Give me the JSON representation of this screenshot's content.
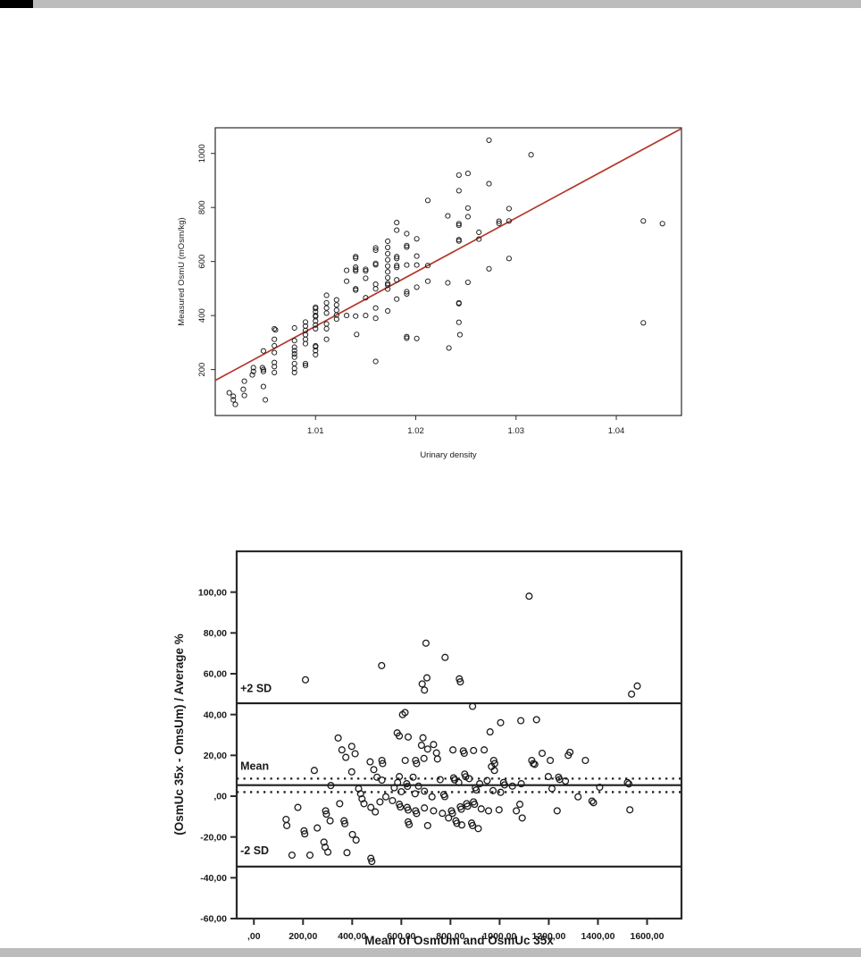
{
  "page": {
    "background_color": "#ffffff",
    "top_strip_color": "#bcbcbc",
    "bottom_strip_color": "#bcbcbc",
    "corner_bar_color": "#000000"
  },
  "chart_data": [
    {
      "type": "scatter",
      "name": "measured-osmolality-vs-urinary-density",
      "title": "",
      "xlabel": "Urinary density",
      "ylabel": "Measured OsmU (mOsm/kg)",
      "xlim": [
        1.0,
        1.0465
      ],
      "ylim": [
        30,
        1095
      ],
      "xticks": [
        1.01,
        1.02,
        1.03,
        1.04
      ],
      "xtick_labels": [
        "1.01",
        "1.02",
        "1.03",
        "1.04"
      ],
      "yticks": [
        200,
        400,
        600,
        800,
        1000
      ],
      "ytick_labels": [
        "200",
        "400",
        "600",
        "800",
        "1000"
      ],
      "grid": false,
      "marker": "open-circle",
      "marker_color": "#1b1b1b",
      "frame_color": "#2a2a2a",
      "regression_line": {
        "color": "#b5382b",
        "x": [
          1.0,
          1.0465
        ],
        "y": [
          160,
          1092
        ]
      },
      "points": [
        [
          1.0014,
          114
        ],
        [
          1.0018,
          101
        ],
        [
          1.0018,
          88
        ],
        [
          1.002,
          71
        ],
        [
          1.0028,
          127
        ],
        [
          1.0029,
          157
        ],
        [
          1.0029,
          104
        ],
        [
          1.0037,
          180
        ],
        [
          1.0038,
          207
        ],
        [
          1.0038,
          193
        ],
        [
          1.0047,
          207
        ],
        [
          1.0048,
          269
        ],
        [
          1.0048,
          200
        ],
        [
          1.0048,
          193
        ],
        [
          1.0048,
          137
        ],
        [
          1.005,
          88
        ],
        [
          1.0059,
          351
        ],
        [
          1.0059,
          312
        ],
        [
          1.0059,
          288
        ],
        [
          1.0059,
          263
        ],
        [
          1.0059,
          226
        ],
        [
          1.0059,
          211
        ],
        [
          1.0059,
          189
        ],
        [
          1.006,
          347
        ],
        [
          1.0079,
          354
        ],
        [
          1.0079,
          307
        ],
        [
          1.0079,
          283
        ],
        [
          1.0079,
          270
        ],
        [
          1.0079,
          258
        ],
        [
          1.0079,
          246
        ],
        [
          1.0079,
          222
        ],
        [
          1.0079,
          204
        ],
        [
          1.0079,
          189
        ],
        [
          1.009,
          376
        ],
        [
          1.009,
          361
        ],
        [
          1.009,
          345
        ],
        [
          1.009,
          329
        ],
        [
          1.009,
          312
        ],
        [
          1.009,
          296
        ],
        [
          1.009,
          222
        ],
        [
          1.009,
          215
        ],
        [
          1.01,
          431
        ],
        [
          1.01,
          426
        ],
        [
          1.01,
          414
        ],
        [
          1.01,
          400
        ],
        [
          1.01,
          396
        ],
        [
          1.01,
          380
        ],
        [
          1.01,
          365
        ],
        [
          1.01,
          351
        ],
        [
          1.01,
          288
        ],
        [
          1.01,
          284
        ],
        [
          1.01,
          270
        ],
        [
          1.01,
          255
        ],
        [
          1.0111,
          475
        ],
        [
          1.0111,
          447
        ],
        [
          1.0111,
          428
        ],
        [
          1.0111,
          409
        ],
        [
          1.0111,
          369
        ],
        [
          1.0111,
          351
        ],
        [
          1.0111,
          312
        ],
        [
          1.0121,
          458
        ],
        [
          1.0121,
          439
        ],
        [
          1.0121,
          420
        ],
        [
          1.0121,
          402
        ],
        [
          1.0121,
          387
        ],
        [
          1.0131,
          567
        ],
        [
          1.0131,
          527
        ],
        [
          1.0131,
          400
        ],
        [
          1.014,
          618
        ],
        [
          1.014,
          612
        ],
        [
          1.014,
          579
        ],
        [
          1.014,
          571
        ],
        [
          1.014,
          565
        ],
        [
          1.014,
          499
        ],
        [
          1.014,
          494
        ],
        [
          1.014,
          398
        ],
        [
          1.0141,
          330
        ],
        [
          1.015,
          571
        ],
        [
          1.015,
          565
        ],
        [
          1.015,
          538
        ],
        [
          1.015,
          466
        ],
        [
          1.015,
          400
        ],
        [
          1.016,
          650
        ],
        [
          1.016,
          642
        ],
        [
          1.016,
          593
        ],
        [
          1.016,
          588
        ],
        [
          1.016,
          516
        ],
        [
          1.016,
          499
        ],
        [
          1.016,
          428
        ],
        [
          1.016,
          390
        ],
        [
          1.016,
          230
        ],
        [
          1.0172,
          675
        ],
        [
          1.0172,
          652
        ],
        [
          1.0172,
          629
        ],
        [
          1.0172,
          606
        ],
        [
          1.0172,
          583
        ],
        [
          1.0172,
          562
        ],
        [
          1.0172,
          540
        ],
        [
          1.0172,
          519
        ],
        [
          1.0172,
          513
        ],
        [
          1.0172,
          498
        ],
        [
          1.0172,
          417
        ],
        [
          1.0181,
          744
        ],
        [
          1.0181,
          716
        ],
        [
          1.0181,
          618
        ],
        [
          1.0181,
          611
        ],
        [
          1.0181,
          585
        ],
        [
          1.0181,
          578
        ],
        [
          1.0181,
          532
        ],
        [
          1.0181,
          461
        ],
        [
          1.0191,
          703
        ],
        [
          1.0191,
          659
        ],
        [
          1.0191,
          653
        ],
        [
          1.0191,
          587
        ],
        [
          1.0191,
          488
        ],
        [
          1.0191,
          480
        ],
        [
          1.0191,
          322
        ],
        [
          1.0191,
          316
        ],
        [
          1.0201,
          684
        ],
        [
          1.0201,
          620
        ],
        [
          1.0201,
          587
        ],
        [
          1.0201,
          505
        ],
        [
          1.0201,
          315
        ],
        [
          1.0212,
          826
        ],
        [
          1.0212,
          585
        ],
        [
          1.0212,
          527
        ],
        [
          1.0232,
          769
        ],
        [
          1.0232,
          521
        ],
        [
          1.0233,
          280
        ],
        [
          1.0243,
          920
        ],
        [
          1.0243,
          862
        ],
        [
          1.0243,
          740
        ],
        [
          1.0243,
          734
        ],
        [
          1.0243,
          681
        ],
        [
          1.0243,
          676
        ],
        [
          1.0243,
          447
        ],
        [
          1.0243,
          444
        ],
        [
          1.0243,
          375
        ],
        [
          1.0244,
          329
        ],
        [
          1.0252,
          926
        ],
        [
          1.0252,
          798
        ],
        [
          1.0252,
          766
        ],
        [
          1.0252,
          523
        ],
        [
          1.0263,
          708
        ],
        [
          1.0263,
          683
        ],
        [
          1.0273,
          1049
        ],
        [
          1.0273,
          888
        ],
        [
          1.0273,
          573
        ],
        [
          1.0283,
          749
        ],
        [
          1.0283,
          741
        ],
        [
          1.0293,
          796
        ],
        [
          1.0293,
          750
        ],
        [
          1.0293,
          611
        ],
        [
          1.0315,
          995
        ],
        [
          1.0427,
          750
        ],
        [
          1.0427,
          373
        ],
        [
          1.0446,
          740
        ]
      ]
    },
    {
      "type": "scatter",
      "name": "bland-altman-osmolality",
      "title": "",
      "xlabel": "Mean of OsmUm and OsmUc 35x",
      "ylabel": "(OsmUc 35x - OmsUm) / Average %",
      "xlim": [
        -70,
        1740
      ],
      "ylim": [
        -60,
        120
      ],
      "xticks": [
        0,
        200,
        400,
        600,
        800,
        1000,
        1200,
        1400,
        1600
      ],
      "xtick_labels": [
        ",00",
        "200,00",
        "400,00",
        "600,00",
        "800,00",
        "1000,00",
        "1200,00",
        "1400,00",
        "1600,00"
      ],
      "yticks": [
        100,
        80,
        60,
        40,
        20,
        0,
        -20,
        -40,
        -60
      ],
      "ytick_labels": [
        "100,00",
        "80,00",
        "60,00",
        "40,00",
        "20,00",
        ",00",
        "-20,00",
        "-40,00",
        "-60,00"
      ],
      "grid": false,
      "marker": "open-circle",
      "marker_color": "#1b1b1b",
      "frame_color": "#2a2a2a",
      "reference_lines": [
        {
          "label": "+2 SD",
          "y": 45.5,
          "style": "solid"
        },
        {
          "label": "Mean",
          "y": 5.4,
          "style": "solid"
        },
        {
          "label": "",
          "y": 8.6,
          "style": "dotted"
        },
        {
          "label": "",
          "y": 2.0,
          "style": "dotted"
        },
        {
          "label": "-2 SD",
          "y": -34.5,
          "style": "solid"
        }
      ],
      "line_labels": [
        {
          "text": "+2 SD",
          "x": -55,
          "y": 51
        },
        {
          "text": "Mean",
          "x": -55,
          "y": 13
        },
        {
          "text": "-2 SD",
          "x": -55,
          "y": -28.5
        }
      ],
      "points": [
        [
          210,
          57
        ],
        [
          520,
          64
        ],
        [
          700,
          75
        ],
        [
          778,
          68
        ],
        [
          1120,
          98
        ],
        [
          1537,
          50
        ],
        [
          1560,
          54
        ],
        [
          685,
          55
        ],
        [
          694,
          52
        ],
        [
          704,
          58
        ],
        [
          836,
          57.5
        ],
        [
          840,
          56
        ],
        [
          890,
          44
        ],
        [
          615,
          41
        ],
        [
          605,
          40
        ],
        [
          628,
          29
        ],
        [
          592,
          29.5
        ],
        [
          343,
          28.5
        ],
        [
          961,
          31.5
        ],
        [
          1004,
          36
        ],
        [
          1086,
          37
        ],
        [
          1150,
          37.5
        ],
        [
          583,
          31
        ],
        [
          358,
          22.7
        ],
        [
          398,
          24.4
        ],
        [
          374,
          19
        ],
        [
          412,
          20.8
        ],
        [
          688,
          28.6
        ],
        [
          682,
          24.9
        ],
        [
          731,
          25.3
        ],
        [
          707,
          23.1
        ],
        [
          743,
          21.2
        ],
        [
          810,
          22.7
        ],
        [
          852,
          22.2
        ],
        [
          856,
          21
        ],
        [
          894,
          22.4
        ],
        [
          937,
          22.7
        ],
        [
          1173,
          21
        ],
        [
          1279,
          20
        ],
        [
          1286,
          21.5
        ],
        [
          246,
          12.6
        ],
        [
          398,
          11.9
        ],
        [
          473,
          16.8
        ],
        [
          488,
          13
        ],
        [
          521,
          17.5
        ],
        [
          524,
          16
        ],
        [
          616,
          17.5
        ],
        [
          658,
          17.5
        ],
        [
          662,
          16
        ],
        [
          692,
          18.5
        ],
        [
          747,
          18.2
        ],
        [
          976,
          17.5
        ],
        [
          980,
          16
        ],
        [
          967,
          14.5
        ],
        [
          979,
          12.6
        ],
        [
          1131,
          17.5
        ],
        [
          1143,
          15.6
        ],
        [
          1206,
          17.5
        ],
        [
          1137,
          16
        ],
        [
          1349,
          17.5
        ],
        [
          1240,
          9.3
        ],
        [
          1198,
          9.6
        ],
        [
          1244,
          8.2
        ],
        [
          1268,
          7.4
        ],
        [
          313,
          5.2
        ],
        [
          426,
          3.7
        ],
        [
          434,
          1.2
        ],
        [
          501,
          9.3
        ],
        [
          521,
          7.9
        ],
        [
          592,
          9.6
        ],
        [
          648,
          9.3
        ],
        [
          585,
          6.7
        ],
        [
          622,
          6.1
        ],
        [
          625,
          4.8
        ],
        [
          670,
          4.9
        ],
        [
          571,
          4.1
        ],
        [
          600,
          2.2
        ],
        [
          656,
          1.2
        ],
        [
          694,
          2.4
        ],
        [
          758,
          8.1
        ],
        [
          813,
          9
        ],
        [
          817,
          8
        ],
        [
          834,
          6.7
        ],
        [
          858,
          10.8
        ],
        [
          862,
          9.5
        ],
        [
          876,
          8.6
        ],
        [
          901,
          4.1
        ],
        [
          905,
          3
        ],
        [
          919,
          6.1
        ],
        [
          949,
          7.6
        ],
        [
          1016,
          6.7
        ],
        [
          1020,
          5.5
        ],
        [
          1052,
          4.9
        ],
        [
          1088,
          6.1
        ],
        [
          973,
          2.7
        ],
        [
          1004,
          1.9
        ],
        [
          773,
          0.8
        ],
        [
          777,
          -0.2
        ],
        [
          1213,
          3.7
        ],
        [
          1407,
          4.4
        ],
        [
          1520,
          6.7
        ],
        [
          1526,
          6
        ],
        [
          440,
          -1.3
        ],
        [
          448,
          -3.7
        ],
        [
          476,
          -5.5
        ],
        [
          494,
          -7.7
        ],
        [
          513,
          -2.8
        ],
        [
          537,
          -0.3
        ],
        [
          179,
          -5.5
        ],
        [
          292,
          -7.2
        ],
        [
          295,
          -8.8
        ],
        [
          349,
          -3.7
        ],
        [
          564,
          -2.2
        ],
        [
          592,
          -4
        ],
        [
          596,
          -5.3
        ],
        [
          624,
          -5.5
        ],
        [
          628,
          -6.8
        ],
        [
          658,
          -7.2
        ],
        [
          662,
          -8.5
        ],
        [
          694,
          -5.8
        ],
        [
          725,
          -0.3
        ],
        [
          731,
          -7.2
        ],
        [
          767,
          -8.4
        ],
        [
          804,
          -7.2
        ],
        [
          808,
          -8.4
        ],
        [
          840,
          -5.2
        ],
        [
          844,
          -6.4
        ],
        [
          866,
          -3.7
        ],
        [
          870,
          -4.9
        ],
        [
          894,
          -2.8
        ],
        [
          898,
          -4
        ],
        [
          925,
          -6.2
        ],
        [
          955,
          -7.2
        ],
        [
          998,
          -6.7
        ],
        [
          1068,
          -7.2
        ],
        [
          1082,
          -4
        ],
        [
          1092,
          -10.7
        ],
        [
          1319,
          -0.3
        ],
        [
          1376,
          -2.4
        ],
        [
          1382,
          -3.2
        ],
        [
          1234,
          -7.2
        ],
        [
          1530,
          -6.7
        ],
        [
          131,
          -11.4
        ],
        [
          134,
          -14.4
        ],
        [
          204,
          -17
        ],
        [
          207,
          -18.5
        ],
        [
          258,
          -15.6
        ],
        [
          310,
          -12.1
        ],
        [
          367,
          -12.1
        ],
        [
          370,
          -13.5
        ],
        [
          401,
          -18.8
        ],
        [
          416,
          -21.5
        ],
        [
          628,
          -12.6
        ],
        [
          632,
          -13.9
        ],
        [
          707,
          -14.4
        ],
        [
          792,
          -10.7
        ],
        [
          822,
          -12.1
        ],
        [
          826,
          -13.3
        ],
        [
          846,
          -14.1
        ],
        [
          886,
          -13.2
        ],
        [
          890,
          -14.4
        ],
        [
          913,
          -15.9
        ],
        [
          285,
          -22.5
        ],
        [
          290,
          -25
        ],
        [
          301,
          -27.4
        ],
        [
          155,
          -28.9
        ],
        [
          228,
          -28.9
        ],
        [
          379,
          -27.7
        ],
        [
          476,
          -30.5
        ],
        [
          480,
          -32
        ]
      ]
    }
  ]
}
